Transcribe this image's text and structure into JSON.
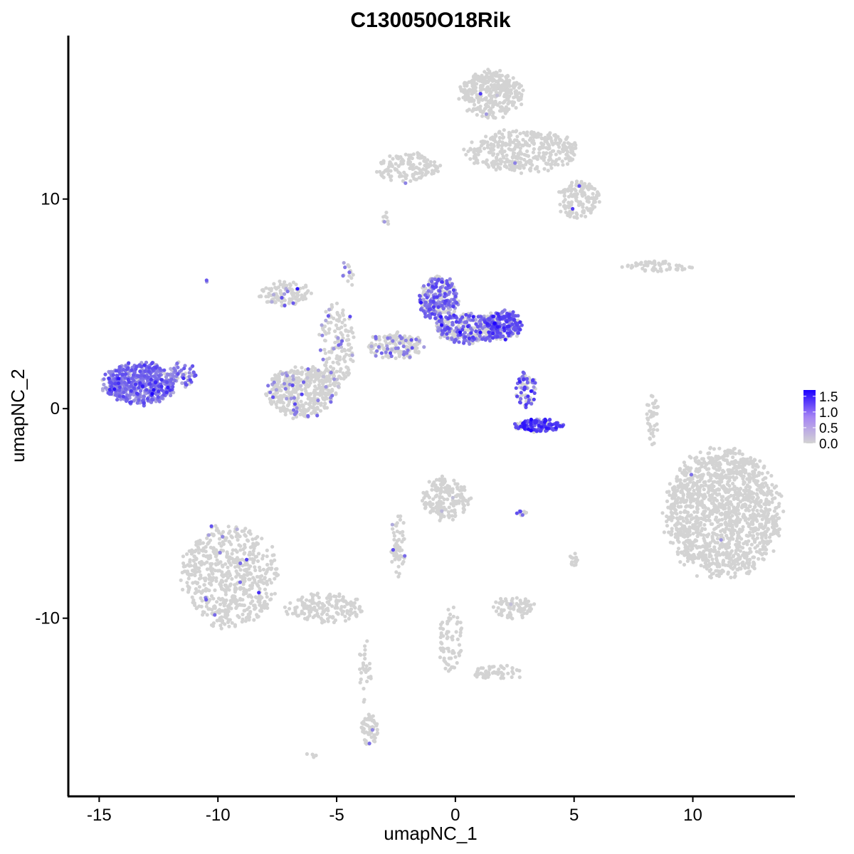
{
  "chart_data": {
    "type": "scatter",
    "title": "C130050O18Rik",
    "xlabel": "umapNC_1",
    "ylabel": "umapNC_2",
    "xlim": [
      -16.3,
      14.3
    ],
    "ylim": [
      -18.5,
      17.8
    ],
    "x_ticks": [
      -15,
      -10,
      -5,
      0,
      5,
      10
    ],
    "x_tick_labels": [
      "-15",
      "-10",
      "-5",
      "0",
      "5",
      "10"
    ],
    "y_ticks": [
      -10,
      0,
      10
    ],
    "y_tick_labels": [
      "-10",
      "0",
      "10"
    ],
    "grid": false,
    "legend_position": "right",
    "color_scale": {
      "low_color": "#d3d3d3",
      "high_color": "#1c00ff",
      "min": 0,
      "max": 1.7,
      "breaks": [
        0.0,
        0.5,
        1.0,
        1.5
      ],
      "break_labels": [
        "0.0",
        "0.5",
        "1.0",
        "1.5"
      ]
    },
    "clusters": [
      {
        "cx": -13.3,
        "cy": 1.2,
        "rx": 1.5,
        "ry": 1.0,
        "n": 520,
        "expr_frac": 0.95,
        "expr_mean": 0.75
      },
      {
        "cx": -11.5,
        "cy": 1.6,
        "rx": 0.6,
        "ry": 0.6,
        "n": 50,
        "expr_frac": 0.7,
        "expr_mean": 0.7
      },
      {
        "cx": -6.5,
        "cy": 0.8,
        "rx": 1.4,
        "ry": 1.2,
        "n": 400,
        "expr_frac": 0.1,
        "expr_mean": 0.6
      },
      {
        "cx": -7.2,
        "cy": 5.5,
        "rx": 1.1,
        "ry": 0.6,
        "n": 110,
        "expr_frac": 0.12,
        "expr_mean": 0.6
      },
      {
        "cx": -5.0,
        "cy": 3.0,
        "rx": 0.7,
        "ry": 2.0,
        "n": 160,
        "expr_frac": 0.12,
        "expr_mean": 0.6
      },
      {
        "cx": -2.5,
        "cy": 3.0,
        "rx": 1.2,
        "ry": 0.6,
        "n": 150,
        "expr_frac": 0.22,
        "expr_mean": 0.65
      },
      {
        "cx": -0.7,
        "cy": 5.2,
        "rx": 0.8,
        "ry": 1.1,
        "n": 260,
        "expr_frac": 0.65,
        "expr_mean": 0.8
      },
      {
        "cx": 0.5,
        "cy": 3.8,
        "rx": 1.4,
        "ry": 0.7,
        "n": 300,
        "expr_frac": 0.55,
        "expr_mean": 0.8
      },
      {
        "cx": 2.0,
        "cy": 4.0,
        "rx": 0.8,
        "ry": 0.7,
        "n": 200,
        "expr_frac": 0.75,
        "expr_mean": 0.95
      },
      {
        "cx": 3.0,
        "cy": 0.9,
        "rx": 0.45,
        "ry": 0.8,
        "n": 70,
        "expr_frac": 0.6,
        "expr_mean": 0.9
      },
      {
        "cx": 3.5,
        "cy": -0.8,
        "rx": 1.0,
        "ry": 0.3,
        "n": 140,
        "expr_frac": 0.8,
        "expr_mean": 1.15
      },
      {
        "cx": 1.5,
        "cy": 15.0,
        "rx": 1.3,
        "ry": 1.1,
        "n": 360,
        "expr_frac": 0.004,
        "expr_mean": 0.6
      },
      {
        "cx": 2.8,
        "cy": 12.3,
        "rx": 2.4,
        "ry": 1.0,
        "n": 380,
        "expr_frac": 0.004,
        "expr_mean": 0.6
      },
      {
        "cx": 5.2,
        "cy": 10.0,
        "rx": 0.9,
        "ry": 0.9,
        "n": 140,
        "expr_frac": 0.01,
        "expr_mean": 0.6
      },
      {
        "cx": -2.0,
        "cy": 11.5,
        "rx": 1.3,
        "ry": 0.7,
        "n": 140,
        "expr_frac": 0.01,
        "expr_mean": 0.6
      },
      {
        "cx": 8.6,
        "cy": 6.8,
        "rx": 1.5,
        "ry": 0.25,
        "n": 60,
        "expr_frac": 0.0,
        "expr_mean": 0.5
      },
      {
        "cx": 11.3,
        "cy": -5.0,
        "rx": 2.4,
        "ry": 3.0,
        "n": 1400,
        "expr_frac": 0.001,
        "expr_mean": 0.6
      },
      {
        "cx": 8.3,
        "cy": -0.5,
        "rx": 0.25,
        "ry": 1.3,
        "n": 40,
        "expr_frac": 0.0,
        "expr_mean": 0.5
      },
      {
        "cx": -9.5,
        "cy": -8.0,
        "rx": 2.0,
        "ry": 2.4,
        "n": 620,
        "expr_frac": 0.02,
        "expr_mean": 0.65
      },
      {
        "cx": -5.5,
        "cy": -9.5,
        "rx": 1.6,
        "ry": 0.7,
        "n": 160,
        "expr_frac": 0.01,
        "expr_mean": 0.6
      },
      {
        "cx": -3.6,
        "cy": -15.3,
        "rx": 0.35,
        "ry": 0.8,
        "n": 60,
        "expr_frac": 0.01,
        "expr_mean": 0.6
      },
      {
        "cx": -3.8,
        "cy": -12.5,
        "rx": 0.25,
        "ry": 1.6,
        "n": 30,
        "expr_frac": 0.0,
        "expr_mean": 0.5
      },
      {
        "cx": -0.4,
        "cy": -4.3,
        "rx": 1.0,
        "ry": 1.0,
        "n": 180,
        "expr_frac": 0.02,
        "expr_mean": 0.6
      },
      {
        "cx": -2.4,
        "cy": -6.5,
        "rx": 0.3,
        "ry": 1.5,
        "n": 40,
        "expr_frac": 0.02,
        "expr_mean": 0.6
      },
      {
        "cx": -2.4,
        "cy": -6.9,
        "rx": 0.35,
        "ry": 0.3,
        "n": 25,
        "expr_frac": 0.05,
        "expr_mean": 0.7
      },
      {
        "cx": 2.4,
        "cy": -9.5,
        "rx": 0.9,
        "ry": 0.5,
        "n": 80,
        "expr_frac": 0.02,
        "expr_mean": 0.6
      },
      {
        "cx": -0.2,
        "cy": -11.0,
        "rx": 0.5,
        "ry": 1.5,
        "n": 70,
        "expr_frac": 0.0,
        "expr_mean": 0.5
      },
      {
        "cx": 1.8,
        "cy": -12.6,
        "rx": 1.1,
        "ry": 0.35,
        "n": 55,
        "expr_frac": 0.0,
        "expr_mean": 0.5
      },
      {
        "cx": 5.0,
        "cy": -7.2,
        "rx": 0.2,
        "ry": 0.3,
        "n": 15,
        "expr_frac": 0.05,
        "expr_mean": 0.5
      },
      {
        "cx": 2.8,
        "cy": -5.0,
        "rx": 0.25,
        "ry": 0.12,
        "n": 12,
        "expr_frac": 0.3,
        "expr_mean": 0.6
      },
      {
        "cx": -2.9,
        "cy": 9.0,
        "rx": 0.15,
        "ry": 0.4,
        "n": 8,
        "expr_frac": 0.2,
        "expr_mean": 0.6
      },
      {
        "cx": -4.5,
        "cy": 6.5,
        "rx": 0.3,
        "ry": 0.8,
        "n": 14,
        "expr_frac": 0.3,
        "expr_mean": 0.7
      },
      {
        "cx": -10.5,
        "cy": 6.1,
        "rx": 0.1,
        "ry": 0.1,
        "n": 2,
        "expr_frac": 0.5,
        "expr_mean": 0.6
      },
      {
        "cx": -6.0,
        "cy": -16.5,
        "rx": 0.25,
        "ry": 0.15,
        "n": 6,
        "expr_frac": 0.0,
        "expr_mean": 0.5
      }
    ]
  }
}
